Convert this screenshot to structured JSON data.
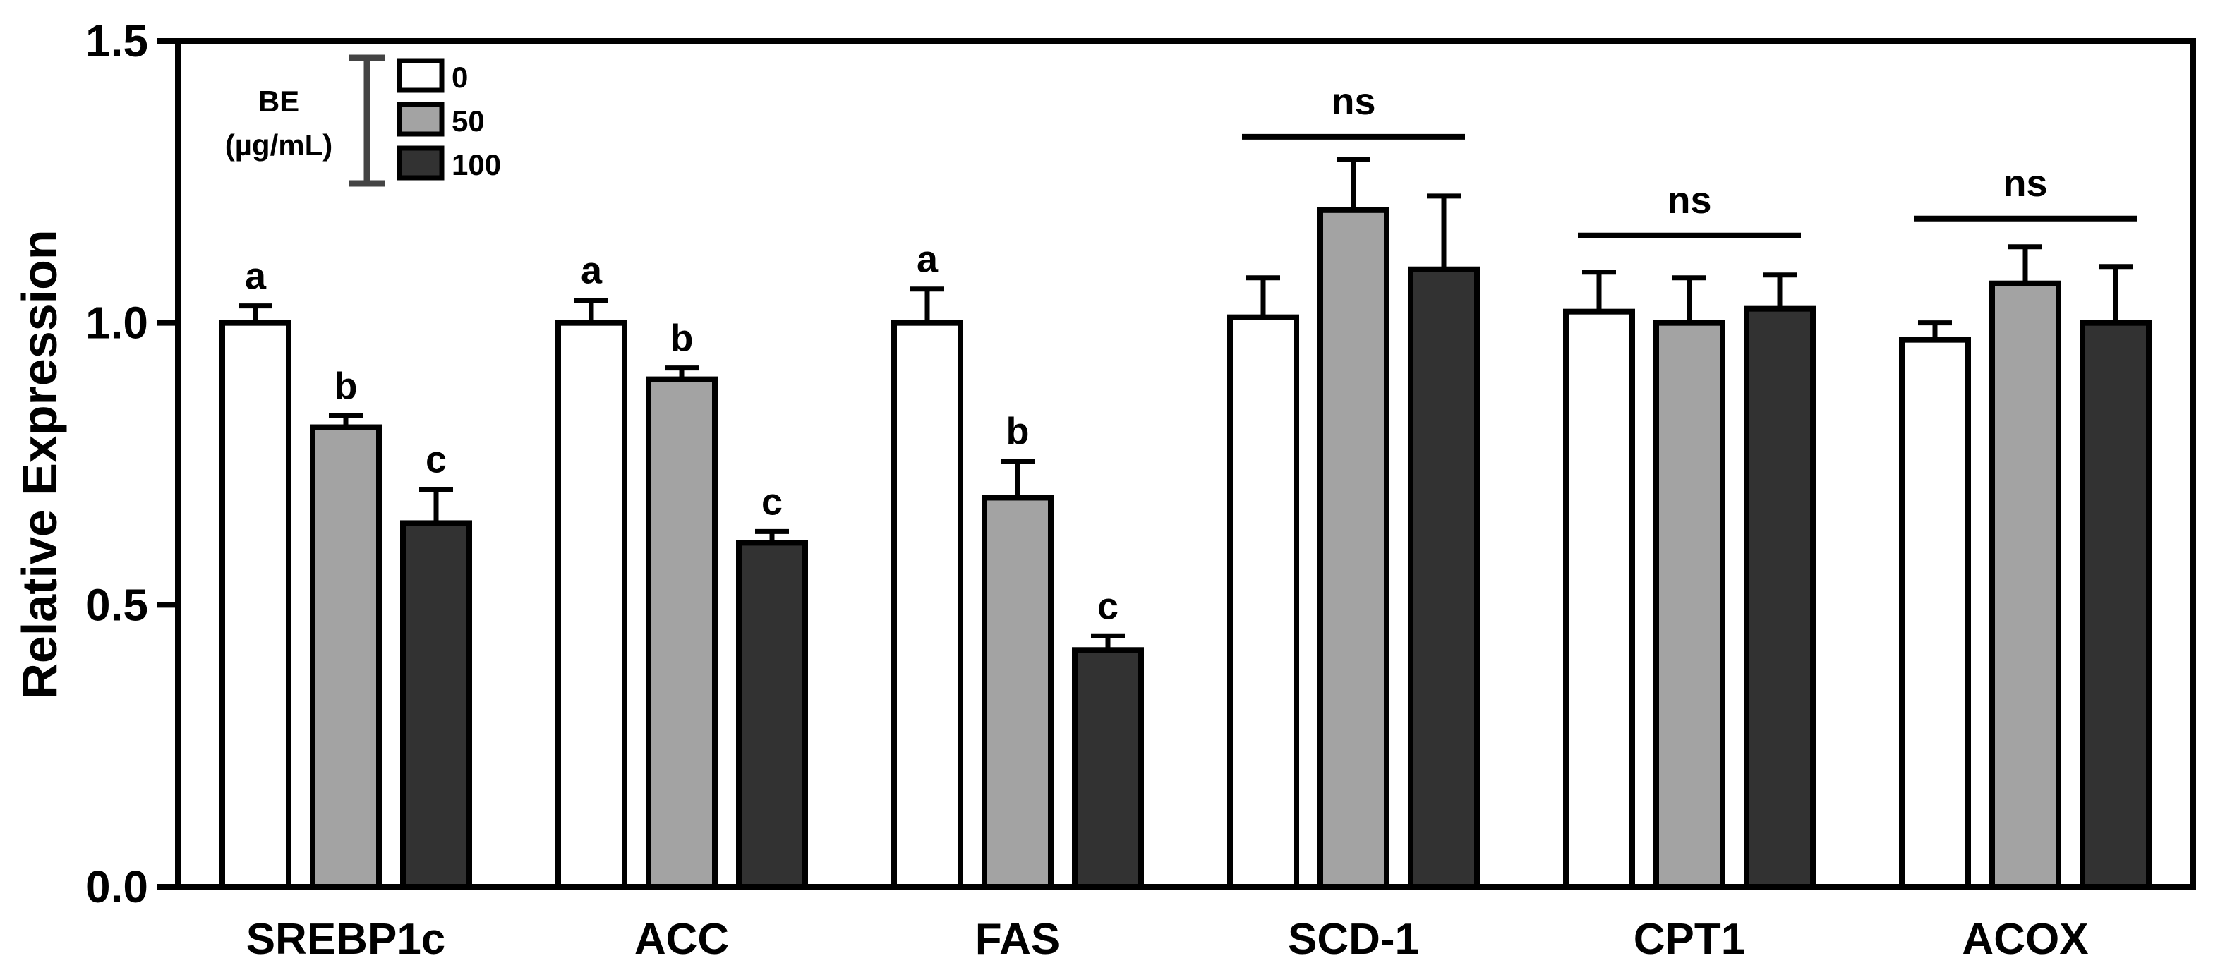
{
  "chart_data": {
    "type": "bar",
    "title": "",
    "xlabel": "",
    "ylabel": "Relative Expression",
    "ylim": [
      0,
      1.5
    ],
    "yticks": [
      "0.0",
      "0.5",
      "1.0",
      "1.5"
    ],
    "categories": [
      "SREBP1c",
      "ACC",
      "FAS",
      "SCD-1",
      "CPT1",
      "ACOX"
    ],
    "legend": {
      "title_lines": [
        "BE",
        "(µg/mL)"
      ],
      "placement": "top-left"
    },
    "series": [
      {
        "name": "0",
        "color": "#ffffff",
        "values": [
          1.0,
          1.0,
          1.0,
          1.01,
          1.02,
          0.97
        ],
        "errors": [
          0.03,
          0.04,
          0.06,
          0.07,
          0.07,
          0.03
        ]
      },
      {
        "name": "50",
        "color": "#a3a3a3",
        "values": [
          0.815,
          0.9,
          0.69,
          1.2,
          1.0,
          1.07
        ],
        "errors": [
          0.02,
          0.02,
          0.065,
          0.09,
          0.08,
          0.065
        ]
      },
      {
        "name": "100",
        "color": "#323232",
        "values": [
          0.645,
          0.61,
          0.42,
          1.095,
          1.025,
          1.0
        ],
        "errors": [
          0.06,
          0.02,
          0.025,
          0.13,
          0.06,
          0.1
        ]
      }
    ],
    "annotations": [
      {
        "category": 0,
        "series": 0,
        "text": "a"
      },
      {
        "category": 0,
        "series": 1,
        "text": "b"
      },
      {
        "category": 0,
        "series": 2,
        "text": "c"
      },
      {
        "category": 1,
        "series": 0,
        "text": "a"
      },
      {
        "category": 1,
        "series": 1,
        "text": "b"
      },
      {
        "category": 1,
        "series": 2,
        "text": "c"
      },
      {
        "category": 2,
        "series": 0,
        "text": "a"
      },
      {
        "category": 2,
        "series": 1,
        "text": "b"
      },
      {
        "category": 2,
        "series": 2,
        "text": "c"
      }
    ],
    "group_annotations": [
      {
        "category": 3,
        "text": "ns",
        "level": 1.33
      },
      {
        "category": 4,
        "text": "ns",
        "level": 1.155
      },
      {
        "category": 5,
        "text": "ns",
        "level": 1.185
      }
    ]
  }
}
